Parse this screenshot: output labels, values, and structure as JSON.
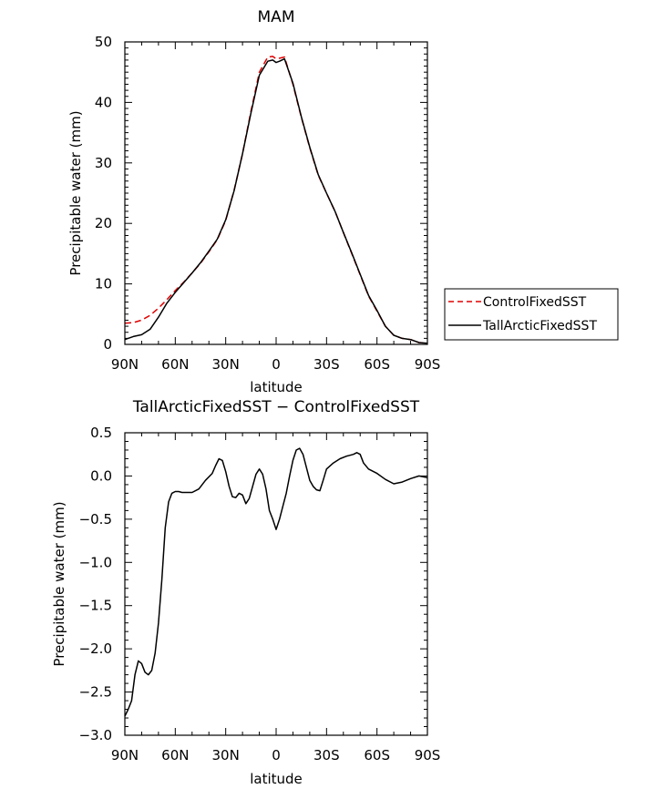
{
  "chart_data": [
    {
      "type": "line",
      "title": "MAM",
      "xlabel": "latitude",
      "ylabel": "Precipitable water (mm)",
      "xlim": [
        90,
        -90
      ],
      "ylim": [
        0,
        50
      ],
      "xticks": [
        90,
        60,
        30,
        0,
        -30,
        -60,
        -90
      ],
      "xtick_labels": [
        "90N",
        "60N",
        "30N",
        "0",
        "30S",
        "60S",
        "90S"
      ],
      "yticks": [
        0,
        10,
        20,
        30,
        40,
        50
      ],
      "ytick_labels": [
        "0",
        "10",
        "20",
        "30",
        "40",
        "50"
      ],
      "legend": "right",
      "series": [
        {
          "name": "ControlFixedSST",
          "color": "#e00000",
          "dash": "dashed",
          "x": [
            90,
            85,
            80,
            75,
            70,
            65,
            60,
            55,
            50,
            45,
            40,
            35,
            30,
            25,
            20,
            15,
            10,
            5,
            2,
            0,
            -2,
            -5,
            -10,
            -15,
            -20,
            -25,
            -30,
            -35,
            -40,
            -45,
            -50,
            -55,
            -60,
            -65,
            -70,
            -75,
            -80,
            -85,
            -90
          ],
          "values": [
            3.5,
            3.6,
            4.0,
            4.8,
            6.0,
            7.4,
            8.9,
            10.3,
            11.8,
            13.4,
            15.3,
            17.3,
            20.5,
            25.5,
            31.5,
            38.5,
            45.0,
            47.5,
            47.6,
            47.2,
            47.3,
            47.5,
            43.0,
            37.5,
            32.5,
            28.0,
            25.0,
            22.0,
            18.5,
            15.0,
            11.5,
            8.0,
            5.5,
            3.0,
            1.5,
            1.0,
            0.8,
            0.3,
            0.2
          ]
        },
        {
          "name": "TallArcticFixedSST",
          "color": "#000000",
          "dash": "solid",
          "x": [
            90,
            85,
            80,
            75,
            70,
            65,
            60,
            55,
            50,
            45,
            40,
            35,
            30,
            25,
            20,
            15,
            10,
            5,
            2,
            0,
            -2,
            -5,
            -10,
            -15,
            -20,
            -25,
            -30,
            -35,
            -40,
            -45,
            -50,
            -55,
            -60,
            -65,
            -70,
            -75,
            -80,
            -85,
            -90
          ],
          "values": [
            0.8,
            1.3,
            1.6,
            2.5,
            4.5,
            6.8,
            8.6,
            10.2,
            11.8,
            13.5,
            15.4,
            17.4,
            20.6,
            25.4,
            31.5,
            38.2,
            44.5,
            46.8,
            47.0,
            46.6,
            46.8,
            47.2,
            43.2,
            37.6,
            32.6,
            28.1,
            25.0,
            22.0,
            18.5,
            15.1,
            11.6,
            8.1,
            5.6,
            3.0,
            1.5,
            1.0,
            0.8,
            0.3,
            0.2
          ]
        }
      ]
    },
    {
      "type": "line",
      "title": "TallArcticFixedSST − ControlFixedSST",
      "xlabel": "latitude",
      "ylabel": "Precipitable water (mm)",
      "xlim": [
        90,
        -90
      ],
      "ylim": [
        -3.0,
        0.5
      ],
      "xticks": [
        90,
        60,
        30,
        0,
        -30,
        -60,
        -90
      ],
      "xtick_labels": [
        "90N",
        "60N",
        "30N",
        "0",
        "30S",
        "60S",
        "90S"
      ],
      "yticks": [
        0.5,
        0.0,
        -0.5,
        -1.0,
        -1.5,
        -2.0,
        -2.5,
        -3.0
      ],
      "ytick_labels": [
        "0.5",
        "0.0",
        "−0.5",
        "−1.0",
        "−1.5",
        "−2.0",
        "−2.5",
        "−3.0"
      ],
      "series": [
        {
          "color": "#000000",
          "dash": "solid",
          "x": [
            90,
            88,
            86,
            84,
            82,
            80,
            78,
            76,
            74,
            72,
            70,
            68,
            66,
            64,
            62,
            60,
            58,
            56,
            54,
            50,
            46,
            42,
            38,
            36,
            34,
            32,
            30,
            28,
            26,
            24,
            22,
            20,
            18,
            16,
            14,
            12,
            10,
            8,
            6,
            4,
            2,
            0,
            -2,
            -4,
            -6,
            -8,
            -10,
            -12,
            -14,
            -16,
            -18,
            -20,
            -22,
            -24,
            -26,
            -28,
            -30,
            -34,
            -38,
            -42,
            -46,
            -48,
            -50,
            -52,
            -55,
            -60,
            -65,
            -70,
            -75,
            -80,
            -85,
            -90
          ],
          "values": [
            -2.78,
            -2.7,
            -2.6,
            -2.3,
            -2.14,
            -2.17,
            -2.27,
            -2.3,
            -2.25,
            -2.05,
            -1.7,
            -1.2,
            -0.6,
            -0.3,
            -0.2,
            -0.18,
            -0.18,
            -0.19,
            -0.19,
            -0.19,
            -0.15,
            -0.05,
            0.03,
            0.12,
            0.2,
            0.18,
            0.05,
            -0.12,
            -0.24,
            -0.25,
            -0.2,
            -0.22,
            -0.32,
            -0.26,
            -0.12,
            0.02,
            0.08,
            0.02,
            -0.15,
            -0.4,
            -0.5,
            -0.62,
            -0.5,
            -0.35,
            -0.2,
            0.0,
            0.18,
            0.3,
            0.32,
            0.25,
            0.1,
            -0.05,
            -0.12,
            -0.16,
            -0.17,
            -0.05,
            0.08,
            0.15,
            0.2,
            0.23,
            0.25,
            0.27,
            0.25,
            0.15,
            0.08,
            0.03,
            -0.04,
            -0.09,
            -0.07,
            -0.03,
            0.0,
            -0.02
          ]
        }
      ]
    }
  ]
}
